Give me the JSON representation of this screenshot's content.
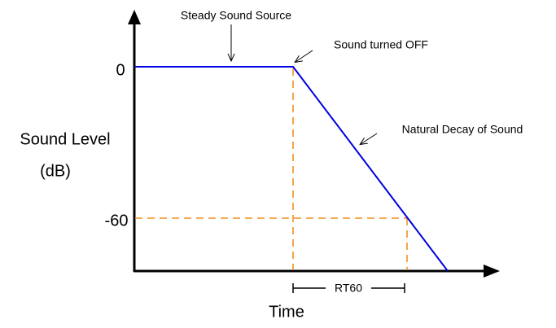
{
  "axes": {
    "y_label_line1": "Sound Level",
    "y_label_line2": "(dB)",
    "x_label": "Time",
    "y_tick_top": "0",
    "y_tick_bottom": "-60"
  },
  "annotations": {
    "steady": "Steady Sound Source",
    "off": "Sound turned OFF",
    "decay": "Natural Decay of Sound",
    "rt60": "RT60"
  }
}
